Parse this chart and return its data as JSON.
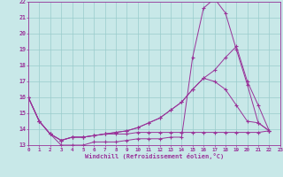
{
  "xlabel": "Windchill (Refroidissement éolien,°C)",
  "background_color": "#c8e8e8",
  "line_color": "#993399",
  "grid_color": "#99cccc",
  "xlim_min": 0,
  "xlim_max": 23,
  "ylim_min": 13,
  "ylim_max": 22,
  "xticks": [
    0,
    1,
    2,
    3,
    4,
    5,
    6,
    7,
    8,
    9,
    10,
    11,
    12,
    13,
    14,
    15,
    16,
    17,
    18,
    19,
    20,
    21,
    22,
    23
  ],
  "yticks": [
    13,
    14,
    15,
    16,
    17,
    18,
    19,
    20,
    21,
    22
  ],
  "s1_y": [
    16.0,
    14.5,
    13.7,
    13.0,
    13.0,
    13.0,
    13.2,
    13.2,
    13.2,
    13.3,
    13.4,
    13.4,
    13.4,
    13.5,
    13.5,
    18.5,
    21.6,
    22.2,
    21.3,
    19.0,
    16.8,
    14.4,
    13.9
  ],
  "s2_y": [
    16.0,
    14.5,
    13.7,
    13.3,
    13.5,
    13.5,
    13.6,
    13.7,
    13.8,
    13.9,
    14.1,
    14.4,
    14.7,
    15.2,
    15.7,
    16.5,
    17.2,
    17.7,
    18.5,
    19.2,
    17.0,
    15.5,
    13.9
  ],
  "s3_y": [
    16.0,
    14.5,
    13.7,
    13.3,
    13.5,
    13.5,
    13.6,
    13.7,
    13.8,
    13.9,
    14.1,
    14.4,
    14.7,
    15.2,
    15.7,
    16.5,
    17.2,
    17.0,
    16.5,
    15.5,
    14.5,
    14.4,
    13.9
  ],
  "s4_y": [
    16.0,
    14.5,
    13.7,
    13.3,
    13.5,
    13.5,
    13.6,
    13.7,
    13.7,
    13.7,
    13.8,
    13.8,
    13.8,
    13.8,
    13.8,
    13.8,
    13.8,
    13.8,
    13.8,
    13.8,
    13.8,
    13.8,
    13.9
  ]
}
